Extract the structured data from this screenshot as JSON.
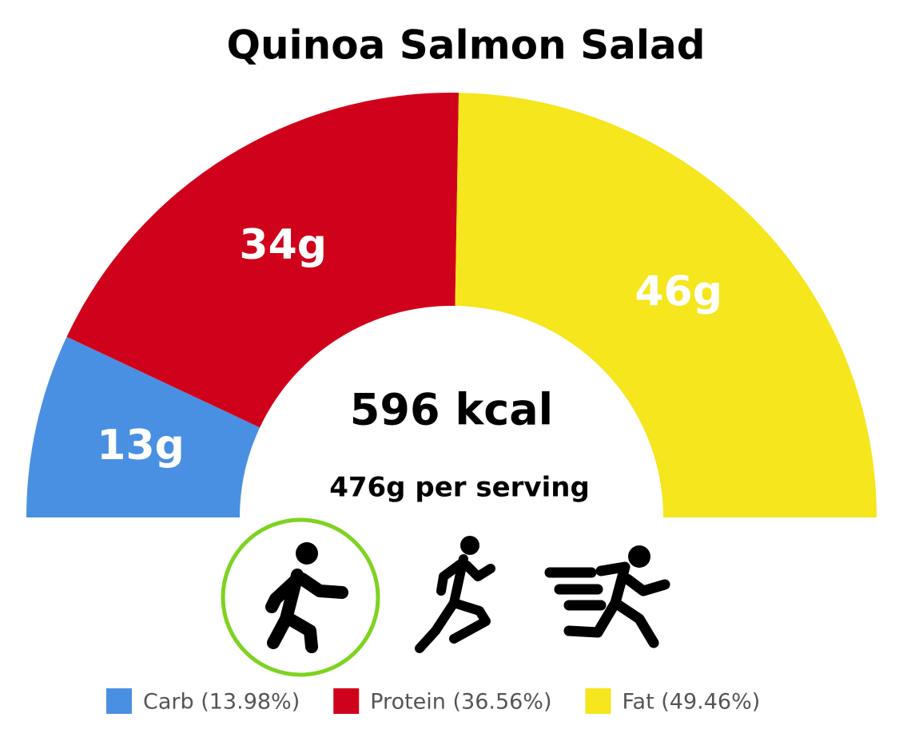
{
  "chart_data": {
    "type": "semidonut",
    "title": "Quinoa Salmon Salad",
    "center_label": "596 kcal",
    "subtitle": "476g per serving",
    "series": [
      {
        "name": "Carb (13.98%)",
        "color": "#4a90e2",
        "share": 13.98,
        "value": 13,
        "value_label": "13g"
      },
      {
        "name": "Protein (36.56%)",
        "color": "#d0021b",
        "share": 36.56,
        "value": 34,
        "value_label": "34g"
      },
      {
        "name": "Fat (49.46%)",
        "color": "#f5e61d",
        "share": 49.46,
        "value": 46,
        "value_label": "46g"
      }
    ]
  }
}
